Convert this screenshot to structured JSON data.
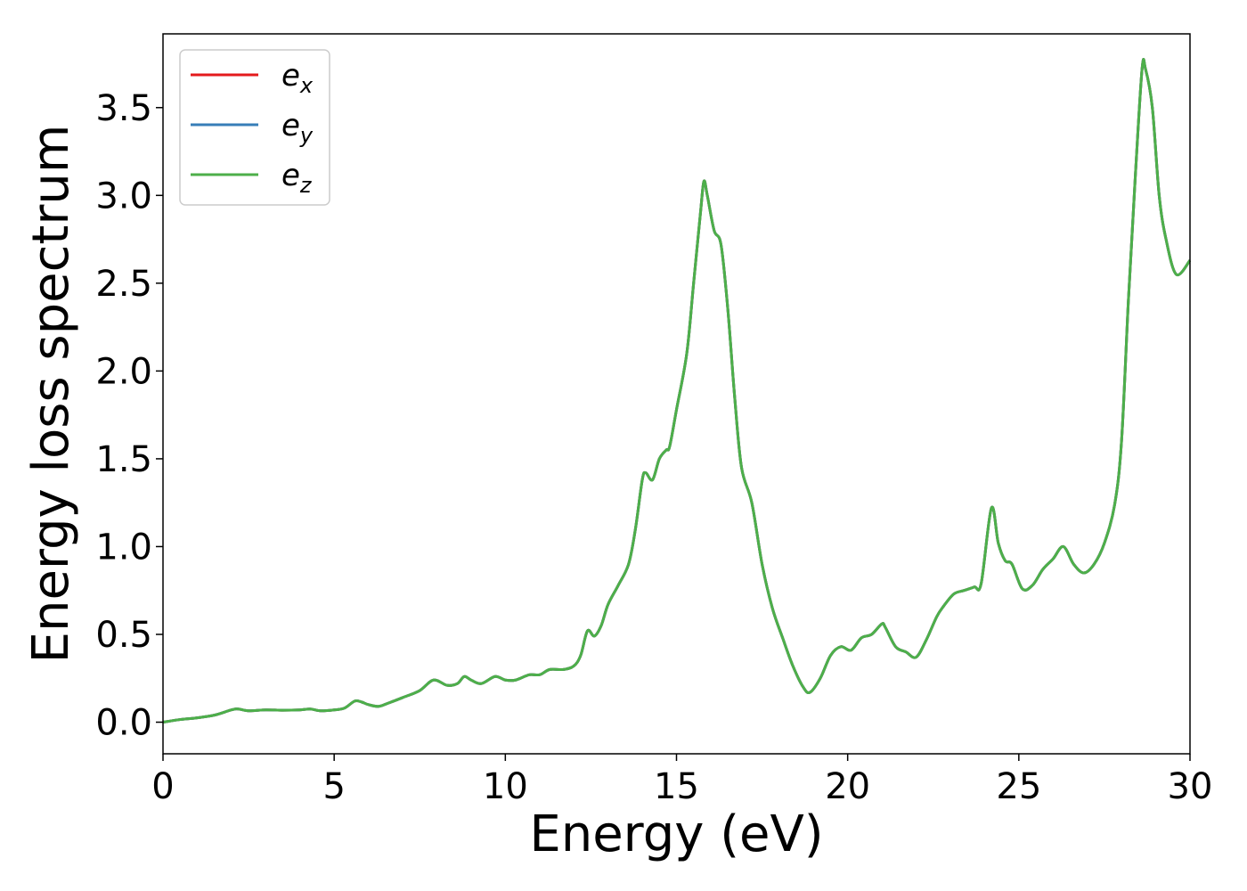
{
  "chart_data": {
    "type": "line",
    "xlabel": "Energy (eV)",
    "ylabel": "Energy loss spectrum",
    "xlim": [
      0,
      30
    ],
    "ylim": [
      -0.18,
      3.92
    ],
    "xticks": [
      0,
      5,
      10,
      15,
      20,
      25,
      30
    ],
    "xtick_labels": [
      "0",
      "5",
      "10",
      "15",
      "20",
      "25",
      "30"
    ],
    "yticks": [
      0.0,
      0.5,
      1.0,
      1.5,
      2.0,
      2.5,
      3.0,
      3.5
    ],
    "ytick_labels": [
      "0.0",
      "0.5",
      "1.0",
      "1.5",
      "2.0",
      "2.5",
      "3.0",
      "3.5"
    ],
    "grid": false,
    "legend_position": "top-left",
    "series": [
      {
        "name": "e",
        "sub": "x",
        "color": "#e41a1c"
      },
      {
        "name": "e",
        "sub": "y",
        "color": "#377eb8"
      },
      {
        "name": "e",
        "sub": "z",
        "color": "#4daf4a"
      }
    ],
    "x": [
      0,
      0.5,
      1.0,
      1.5,
      2.0,
      2.2,
      2.5,
      3.0,
      3.5,
      4.0,
      4.3,
      4.6,
      5.0,
      5.3,
      5.6,
      5.8,
      6.0,
      6.3,
      6.6,
      7.0,
      7.5,
      7.9,
      8.3,
      8.6,
      8.8,
      9.0,
      9.3,
      9.7,
      10.0,
      10.3,
      10.7,
      11.0,
      11.3,
      11.7,
      12.0,
      12.2,
      12.4,
      12.6,
      12.8,
      13.0,
      13.3,
      13.6,
      13.8,
      14.0,
      14.1,
      14.3,
      14.5,
      14.7,
      14.8,
      15.0,
      15.3,
      15.5,
      15.7,
      15.8,
      15.9,
      16.1,
      16.3,
      16.5,
      16.7,
      16.9,
      17.2,
      17.5,
      17.8,
      18.1,
      18.4,
      18.7,
      18.9,
      19.2,
      19.5,
      19.8,
      20.1,
      20.4,
      20.7,
      21.0,
      21.1,
      21.4,
      21.7,
      22.0,
      22.3,
      22.6,
      22.8,
      23.1,
      23.4,
      23.7,
      23.9,
      24.2,
      24.4,
      24.6,
      24.8,
      25.1,
      25.4,
      25.7,
      26.0,
      26.3,
      26.6,
      26.9,
      27.2,
      27.5,
      27.8,
      28.0,
      28.2,
      28.4,
      28.6,
      28.7,
      28.9,
      29.1,
      29.3,
      29.6,
      30.0
    ],
    "y": [
      0.0,
      0.015,
      0.025,
      0.04,
      0.07,
      0.075,
      0.065,
      0.07,
      0.068,
      0.07,
      0.075,
      0.065,
      0.07,
      0.08,
      0.12,
      0.115,
      0.1,
      0.09,
      0.11,
      0.14,
      0.18,
      0.24,
      0.21,
      0.22,
      0.26,
      0.24,
      0.22,
      0.26,
      0.24,
      0.24,
      0.27,
      0.27,
      0.3,
      0.3,
      0.32,
      0.38,
      0.52,
      0.49,
      0.55,
      0.67,
      0.78,
      0.9,
      1.1,
      1.38,
      1.42,
      1.38,
      1.5,
      1.55,
      1.57,
      1.78,
      2.1,
      2.5,
      2.9,
      3.08,
      3.0,
      2.8,
      2.72,
      2.35,
      1.85,
      1.45,
      1.25,
      0.9,
      0.65,
      0.48,
      0.32,
      0.2,
      0.17,
      0.25,
      0.38,
      0.43,
      0.41,
      0.48,
      0.5,
      0.56,
      0.54,
      0.43,
      0.4,
      0.37,
      0.47,
      0.6,
      0.66,
      0.73,
      0.75,
      0.77,
      0.79,
      1.22,
      1.02,
      0.92,
      0.9,
      0.76,
      0.78,
      0.87,
      0.93,
      1.0,
      0.9,
      0.85,
      0.9,
      1.02,
      1.24,
      1.6,
      2.4,
      3.1,
      3.72,
      3.72,
      3.5,
      3.0,
      2.75,
      2.55,
      2.63
    ]
  }
}
